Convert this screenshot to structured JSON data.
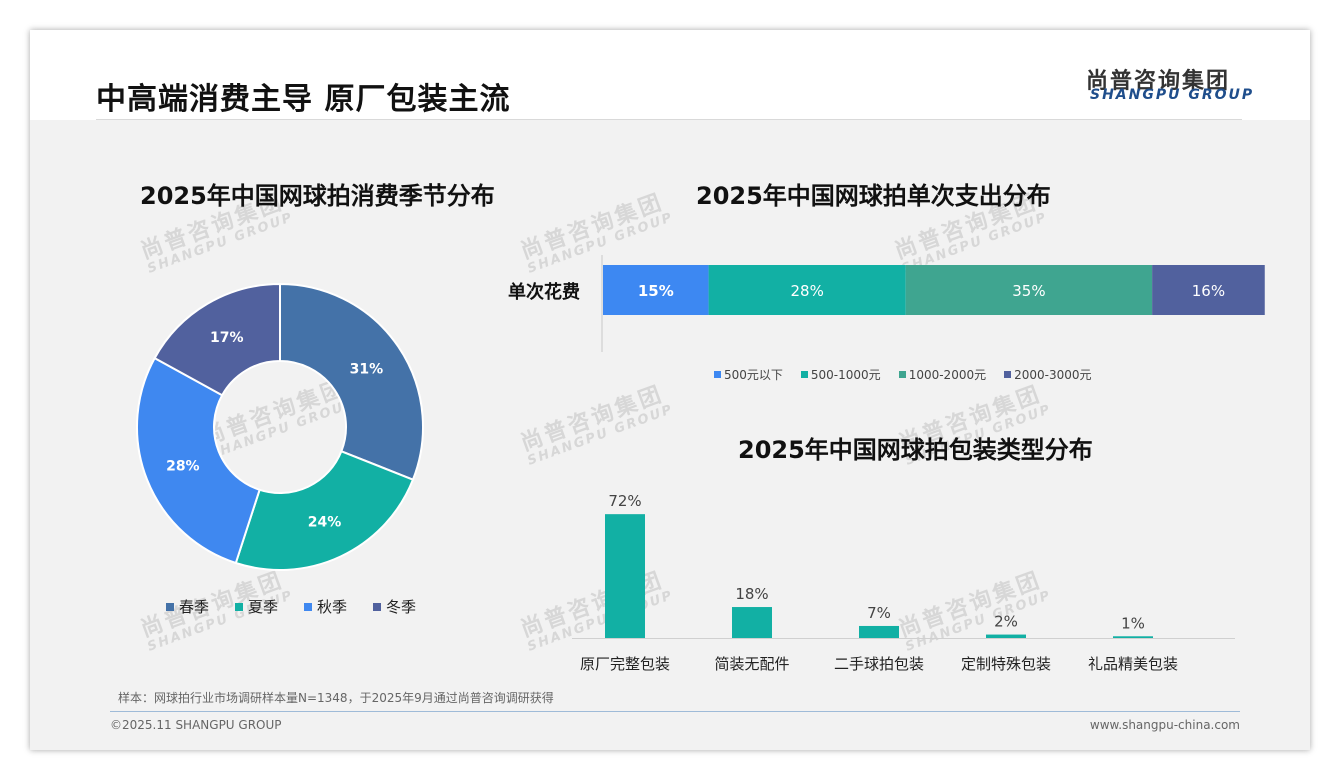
{
  "page": {
    "title": "中高端消费主导 原厂包装主流",
    "logo_cn": "尚普咨询集团",
    "logo_en": "SHANGPU GROUP",
    "note": "样本：网球拍行业市场调研样本量N=1348，于2025年9月通过尚普咨询调研获得",
    "copyright": "©2025.11 SHANGPU GROUP",
    "website": "www.shangpu-china.com"
  },
  "colors": {
    "steel_blue": "#4472a8",
    "teal": "#12b0a4",
    "bright_blue": "#3f88f0",
    "slate": "#51619e",
    "light_blue": "#3d88f2",
    "sea_green": "#3fa590"
  },
  "chart_data": [
    {
      "type": "pie",
      "style": "donut",
      "title": "2025年中国网球拍消费季节分布",
      "categories": [
        "春季",
        "夏季",
        "秋季",
        "冬季"
      ],
      "values": [
        31,
        24,
        28,
        17
      ],
      "labels": [
        "31%",
        "24%",
        "28%",
        "17%"
      ],
      "colors": [
        "#4472a8",
        "#12b0a4",
        "#3f88f0",
        "#51619e"
      ],
      "legend": "bottom"
    },
    {
      "type": "bar",
      "orientation": "horizontal",
      "stacked": true,
      "title": "2025年中国网球拍单次支出分布",
      "categories": [
        "单次花费"
      ],
      "series": [
        {
          "name": "500元以下",
          "values": [
            15
          ],
          "label": "15%",
          "color": "#3d88f2"
        },
        {
          "name": "500-1000元",
          "values": [
            28
          ],
          "label": "28%",
          "color": "#12b0a4"
        },
        {
          "name": "1000-2000元",
          "values": [
            35
          ],
          "label": "35%",
          "color": "#3fa590"
        },
        {
          "name": "2000-3000元",
          "values": [
            16
          ],
          "label": "16%",
          "color": "#51619e"
        }
      ],
      "legend": "bottom"
    },
    {
      "type": "bar",
      "title": "2025年中国网球拍包装类型分布",
      "categories": [
        "原厂完整包装",
        "简装无配件",
        "二手球拍包装",
        "定制特殊包装",
        "礼品精美包装"
      ],
      "values": [
        72,
        18,
        7,
        2,
        1
      ],
      "labels": [
        "72%",
        "18%",
        "7%",
        "2%",
        "1%"
      ],
      "color": "#12b0a4"
    }
  ]
}
